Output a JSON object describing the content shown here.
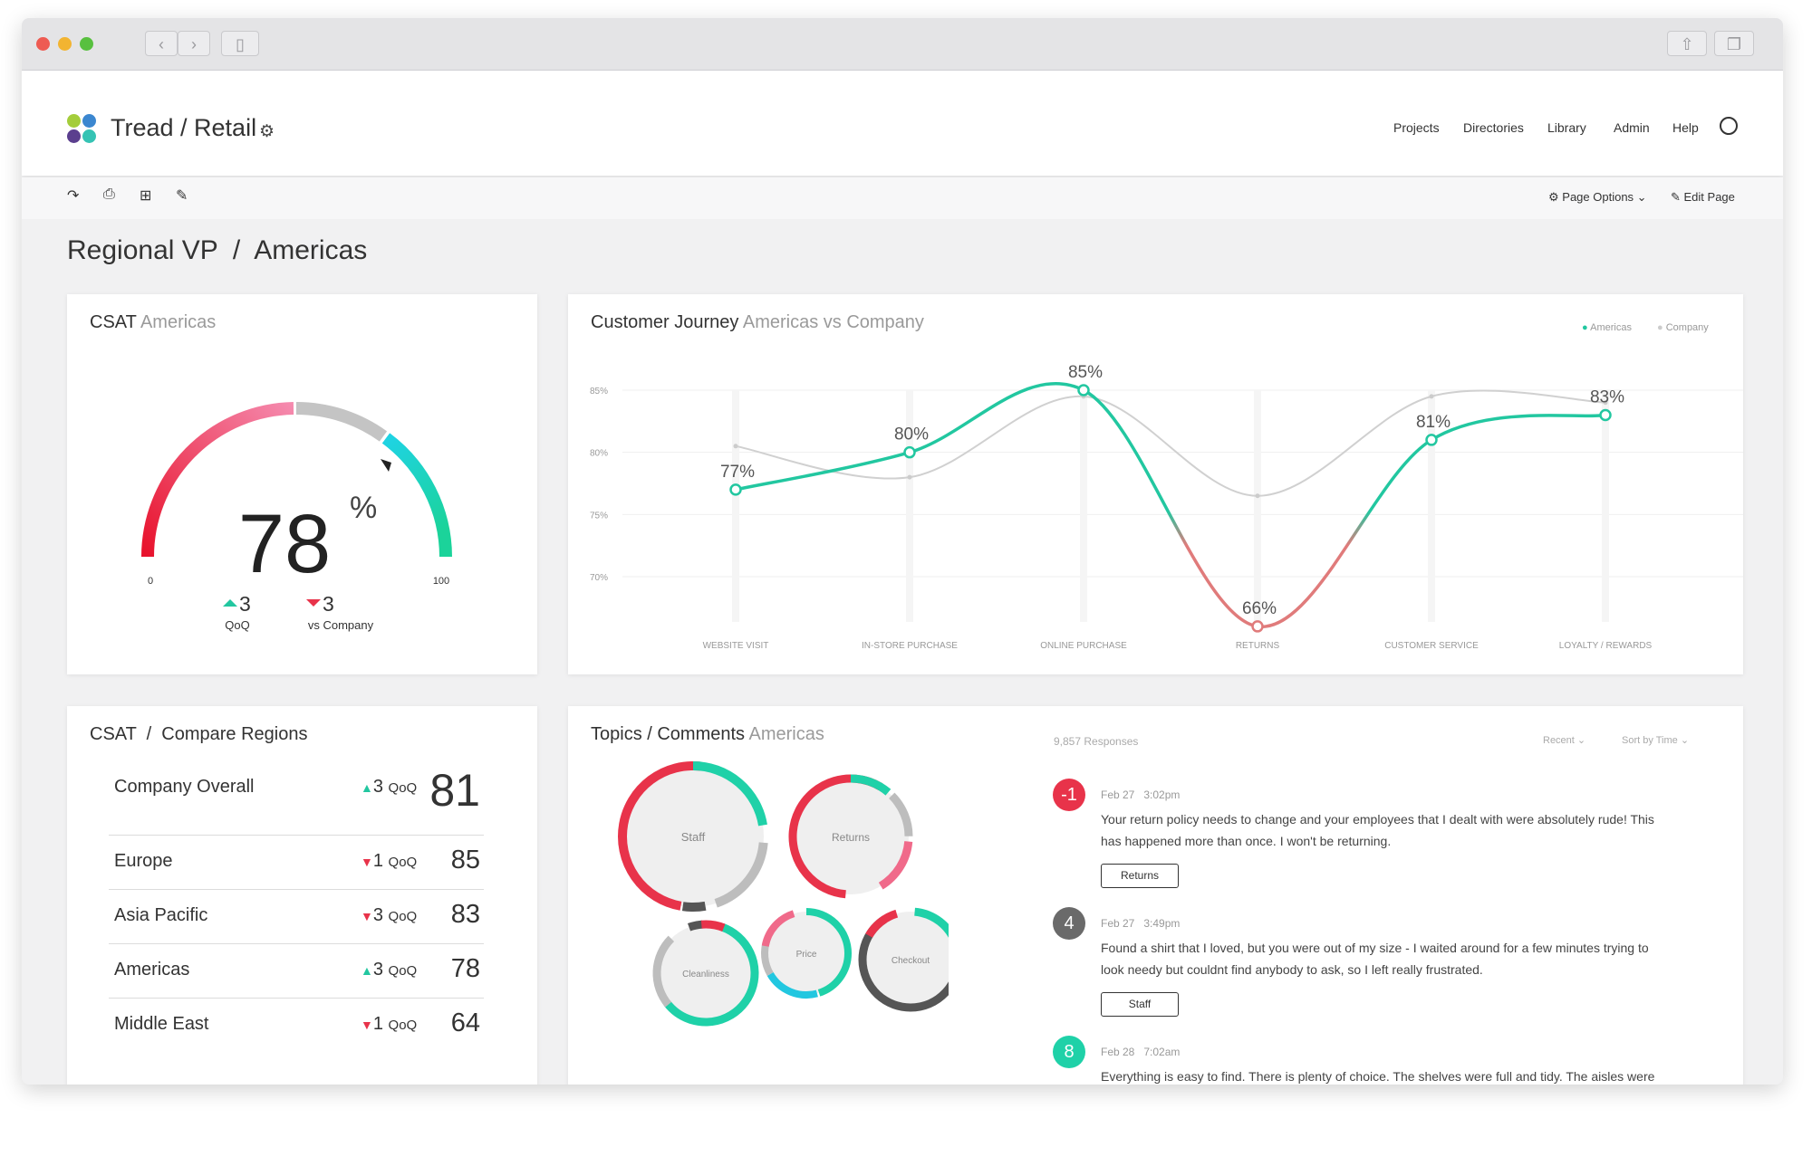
{
  "app": {
    "brand": "Tread / Retail"
  },
  "nav": [
    "Projects",
    "Directories",
    "Library",
    "Admin",
    "Help"
  ],
  "toolbar": {
    "page_options": "Page Options",
    "edit_page": "Edit Page"
  },
  "page": {
    "title": "Regional VP  /  Americas"
  },
  "csat": {
    "title": "CSAT",
    "subtitle": "Americas",
    "value": "78",
    "unit": "%",
    "min": "0",
    "max": "100",
    "qoq_delta": "3",
    "qoq_label": "QoQ",
    "company_delta": "3",
    "company_label": "vs Company"
  },
  "journey": {
    "title": "Customer Journey",
    "subtitle": "Americas vs Company",
    "legend": [
      "Americas",
      "Company"
    ]
  },
  "chart_data": {
    "type": "line",
    "categories": [
      "WEBSITE VISIT",
      "IN-STORE PURCHASE",
      "ONLINE PURCHASE",
      "RETURNS",
      "CUSTOMER SERVICE",
      "LOYALTY / REWARDS"
    ],
    "series": [
      {
        "name": "Americas",
        "values": [
          77,
          80,
          85,
          66,
          81,
          83
        ],
        "labels": [
          "77%",
          "80%",
          "85%",
          "66%",
          "81%",
          "83%"
        ],
        "color": "#22c7a0"
      },
      {
        "name": "Company",
        "values": [
          80.5,
          78,
          84.5,
          76.5,
          84.5,
          84
        ],
        "color": "#cccccc"
      }
    ],
    "yticks": [
      "85%",
      "80%",
      "75%",
      "70%"
    ],
    "ylim": [
      65,
      86
    ],
    "negative_color": "#e07b7b",
    "legend_position": "top-right"
  },
  "regions": {
    "title": "CSAT  /  Compare Regions",
    "rows": [
      {
        "name": "Company Overall",
        "dir": "up",
        "delta": "3",
        "qoq": "QoQ",
        "value": "81"
      },
      {
        "name": "Europe",
        "dir": "down",
        "delta": "1",
        "qoq": "QoQ",
        "value": "85"
      },
      {
        "name": "Asia Pacific",
        "dir": "down",
        "delta": "3",
        "qoq": "QoQ",
        "value": "83"
      },
      {
        "name": "Americas",
        "dir": "up",
        "delta": "3",
        "qoq": "QoQ",
        "value": "78"
      },
      {
        "name": "Middle East",
        "dir": "down",
        "delta": "1",
        "qoq": "QoQ",
        "value": "64"
      }
    ]
  },
  "topics": {
    "title": "Topics / Comments",
    "subtitle": "Americas",
    "responses": "9,857 Responses",
    "filter_recent": "Recent",
    "filter_sort": "Sort by Time",
    "bubbles": [
      "Staff",
      "Returns",
      "Price",
      "Cleanliness",
      "Checkout"
    ]
  },
  "comments": [
    {
      "score": "-1",
      "color": "#e8334a",
      "date": "Feb 27   3:02pm",
      "line1": "Your return policy needs to change and your employees that I dealt with were absolutely rude!  This",
      "line2": "has happened more than once.  I won't be returning.",
      "tag": "Returns"
    },
    {
      "score": "4",
      "color": "#6a6a6a",
      "date": "Feb 27   3:49pm",
      "line1": "Found a shirt that I loved, but you were out of my size - I waited around for a few minutes trying to",
      "line2": "look needy but couldnt find anybody to ask, so I left really frustrated.",
      "tag": "Staff"
    },
    {
      "score": "8",
      "color": "#1fd1a8",
      "date": "Feb 28   7:02am",
      "line1": "Everything is easy to find. There is plenty of choice. The shelves were full and tidy. The aisles were",
      "line2": "",
      "tag": ""
    }
  ]
}
